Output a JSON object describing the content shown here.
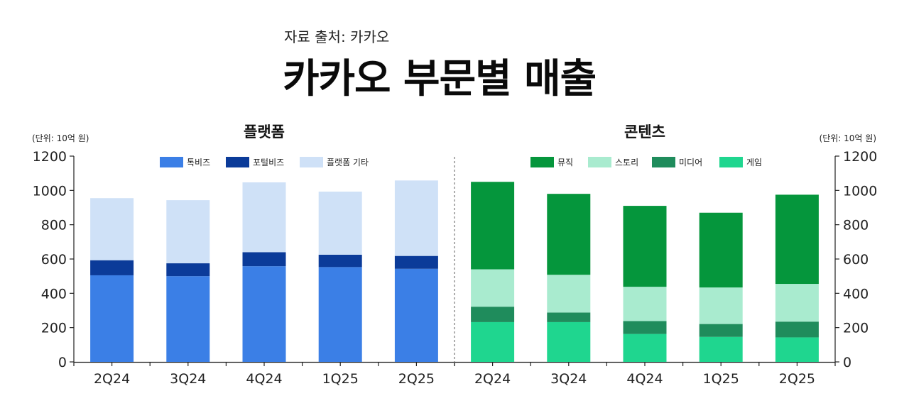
{
  "source": "자료 출처: 카카오",
  "title": "카카오 부문별 매출",
  "chart_data": [
    {
      "type": "bar",
      "stacked": true,
      "title": "플랫폼",
      "unit_label": "(단위: 10억 원)",
      "categories": [
        "2Q24",
        "3Q24",
        "4Q24",
        "1Q25",
        "2Q25"
      ],
      "ylim": [
        0,
        1200
      ],
      "yticks": [
        "0",
        "200",
        "400",
        "600",
        "800",
        "1000",
        "1200"
      ],
      "series": [
        {
          "name": "톡비즈",
          "color": "#3b7fe6",
          "values": [
            505,
            500,
            558,
            553,
            543
          ]
        },
        {
          "name": "포털비즈",
          "color": "#0b3b99",
          "values": [
            88,
            75,
            82,
            72,
            75
          ]
        },
        {
          "name": "플랫폼 기타",
          "color": "#cfe1f7",
          "values": [
            362,
            368,
            407,
            368,
            440
          ]
        }
      ]
    },
    {
      "type": "bar",
      "stacked": true,
      "title": "콘텐츠",
      "unit_label": "(단위: 10억 원)",
      "categories": [
        "2Q24",
        "3Q24",
        "4Q24",
        "1Q25",
        "2Q25"
      ],
      "ylim": [
        0,
        1200
      ],
      "yticks": [
        "0",
        "200",
        "400",
        "600",
        "800",
        "1000",
        "1200"
      ],
      "series": [
        {
          "name": "게임",
          "color": "#1fd68f",
          "values": [
            232,
            232,
            163,
            146,
            143
          ]
        },
        {
          "name": "미디어",
          "color": "#1f8c5c",
          "values": [
            90,
            56,
            75,
            75,
            92
          ]
        },
        {
          "name": "스토리",
          "color": "#a9ebcf",
          "values": [
            218,
            220,
            200,
            213,
            220
          ]
        },
        {
          "name": "뮤직",
          "color": "#05963c",
          "values": [
            510,
            472,
            472,
            436,
            520
          ]
        }
      ],
      "legend_order": [
        "뮤직",
        "스토리",
        "미디어",
        "게임"
      ]
    }
  ]
}
